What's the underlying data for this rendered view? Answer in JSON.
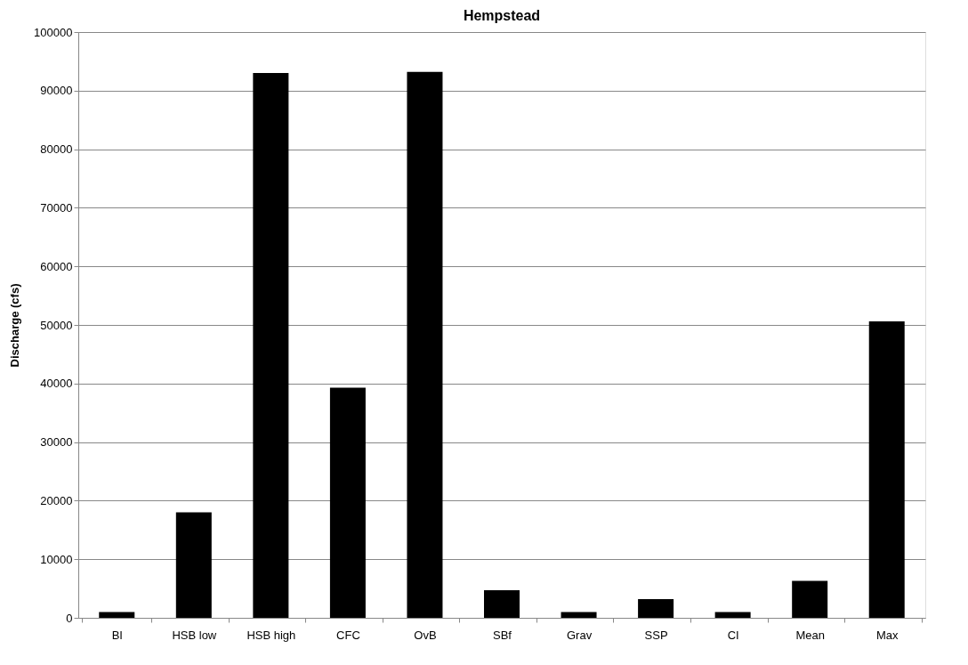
{
  "chart_data": {
    "type": "bar",
    "title": "Hempstead",
    "ylabel": "Discharge (cfs)",
    "categories": [
      "BI",
      "HSB low",
      "HSB high",
      "CFC",
      "OvB",
      "SBf",
      "Grav",
      "SSP",
      "CI",
      "Mean",
      "Max"
    ],
    "values": [
      1000,
      18000,
      93000,
      39300,
      93200,
      4700,
      1000,
      3200,
      1000,
      6300,
      50600
    ],
    "color": "#000000",
    "ylim": [
      0,
      100000
    ],
    "yticks": [
      0,
      10000,
      20000,
      30000,
      40000,
      50000,
      60000,
      70000,
      80000,
      90000,
      100000
    ],
    "grid": "y"
  }
}
